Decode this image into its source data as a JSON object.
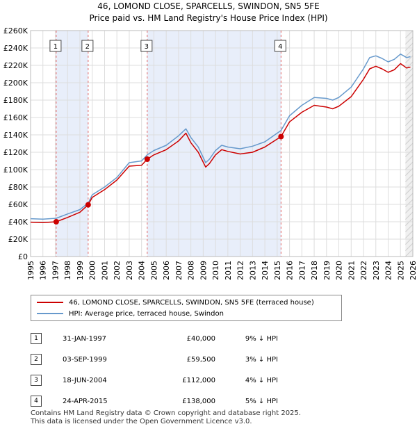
{
  "title_line1": "46, LOMOND CLOSE, SPARCELLS, SWINDON, SN5 5FE",
  "title_line2": "Price paid vs. HM Land Registry's House Price Index (HPI)",
  "colors": {
    "price": "#cc0000",
    "hpi": "#6699cc",
    "shade": "#e8eefa",
    "grid": "#dddddd",
    "vline": "#e06666"
  },
  "chart_data": {
    "type": "line",
    "xlim": [
      1995,
      2026
    ],
    "ylim": [
      0,
      260000
    ],
    "x_ticks": [
      1995,
      1996,
      1997,
      1998,
      1999,
      2000,
      2001,
      2002,
      2003,
      2004,
      2005,
      2006,
      2007,
      2008,
      2009,
      2010,
      2011,
      2012,
      2013,
      2014,
      2015,
      2016,
      2017,
      2018,
      2019,
      2020,
      2021,
      2022,
      2023,
      2024,
      2025,
      2026
    ],
    "x_tick_labels": [
      "1995",
      "1996",
      "1997",
      "1998",
      "1999",
      "2000",
      "2001",
      "2002",
      "2003",
      "2004",
      "2005",
      "2006",
      "2007",
      "2008",
      "2009",
      "2010",
      "2011",
      "2012",
      "2013",
      "2014",
      "2015",
      "2016",
      "2017",
      "2018",
      "2019",
      "2020",
      "2021",
      "2022",
      "2023",
      "2024",
      "2025",
      "2026"
    ],
    "y_ticks": [
      0,
      20000,
      40000,
      60000,
      80000,
      100000,
      120000,
      140000,
      160000,
      180000,
      200000,
      220000,
      240000,
      260000
    ],
    "y_tick_labels": [
      "£0",
      "£20K",
      "£40K",
      "£60K",
      "£80K",
      "£100K",
      "£120K",
      "£140K",
      "£160K",
      "£180K",
      "£200K",
      "£220K",
      "£240K",
      "£260K"
    ],
    "shaded_periods": [
      [
        1997.08,
        1999.67
      ],
      [
        2004.46,
        2015.31
      ]
    ],
    "forecast_from": 2025.4,
    "series": [
      {
        "name": "46, LOMOND CLOSE, SPARCELLS, SWINDON, SN5 5FE (terraced house)",
        "color": "#cc0000",
        "points": [
          [
            1995,
            39500
          ],
          [
            1996,
            39000
          ],
          [
            1997.08,
            40000
          ],
          [
            1998,
            45000
          ],
          [
            1999,
            51000
          ],
          [
            1999.67,
            59500
          ],
          [
            2000,
            68000
          ],
          [
            2001,
            77000
          ],
          [
            2002,
            88000
          ],
          [
            2003,
            104000
          ],
          [
            2004,
            105000
          ],
          [
            2004.46,
            112000
          ],
          [
            2005,
            117000
          ],
          [
            2006,
            123000
          ],
          [
            2007,
            133000
          ],
          [
            2007.6,
            142000
          ],
          [
            2008,
            131000
          ],
          [
            2008.6,
            120000
          ],
          [
            2009.2,
            103000
          ],
          [
            2009.5,
            107000
          ],
          [
            2010,
            117000
          ],
          [
            2010.5,
            123000
          ],
          [
            2011,
            121000
          ],
          [
            2012,
            118000
          ],
          [
            2013,
            120000
          ],
          [
            2014,
            126000
          ],
          [
            2015.31,
            138000
          ],
          [
            2016,
            155000
          ],
          [
            2017,
            166000
          ],
          [
            2018,
            174000
          ],
          [
            2019,
            172000
          ],
          [
            2019.5,
            170000
          ],
          [
            2020,
            173000
          ],
          [
            2021,
            184000
          ],
          [
            2022,
            204000
          ],
          [
            2022.5,
            216000
          ],
          [
            2023,
            219000
          ],
          [
            2023.5,
            216000
          ],
          [
            2024,
            212000
          ],
          [
            2024.5,
            215000
          ],
          [
            2025,
            222000
          ],
          [
            2025.5,
            217000
          ],
          [
            2025.8,
            218000
          ]
        ]
      },
      {
        "name": "HPI: Average price, terraced house, Swindon",
        "color": "#6699cc",
        "points": [
          [
            1995,
            43500
          ],
          [
            1996,
            43000
          ],
          [
            1997.08,
            44000
          ],
          [
            1998,
            49000
          ],
          [
            1999,
            54000
          ],
          [
            1999.67,
            61500
          ],
          [
            2000,
            71000
          ],
          [
            2001,
            80000
          ],
          [
            2002,
            91000
          ],
          [
            2003,
            108000
          ],
          [
            2004,
            110000
          ],
          [
            2004.46,
            117000
          ],
          [
            2005,
            122000
          ],
          [
            2006,
            128000
          ],
          [
            2007,
            139000
          ],
          [
            2007.6,
            147000
          ],
          [
            2008,
            137000
          ],
          [
            2008.6,
            126000
          ],
          [
            2009.2,
            108000
          ],
          [
            2009.5,
            112000
          ],
          [
            2010,
            122000
          ],
          [
            2010.5,
            128000
          ],
          [
            2011,
            126000
          ],
          [
            2012,
            124000
          ],
          [
            2013,
            127000
          ],
          [
            2014,
            132000
          ],
          [
            2015.31,
            145000
          ],
          [
            2016,
            162000
          ],
          [
            2017,
            174000
          ],
          [
            2018,
            183000
          ],
          [
            2019,
            182000
          ],
          [
            2019.5,
            180000
          ],
          [
            2020,
            183000
          ],
          [
            2021,
            195000
          ],
          [
            2022,
            216000
          ],
          [
            2022.5,
            229000
          ],
          [
            2023,
            231000
          ],
          [
            2023.5,
            228000
          ],
          [
            2024,
            224000
          ],
          [
            2024.5,
            227000
          ],
          [
            2025,
            233000
          ],
          [
            2025.5,
            229000
          ],
          [
            2025.8,
            230000
          ]
        ]
      }
    ],
    "sale_markers": [
      {
        "label": "1",
        "x": 1997.08,
        "y": 40000
      },
      {
        "label": "2",
        "x": 1999.67,
        "y": 59500
      },
      {
        "label": "3",
        "x": 2004.46,
        "y": 112000
      },
      {
        "label": "4",
        "x": 2015.31,
        "y": 138000
      }
    ]
  },
  "legend": {
    "price_label": "46, LOMOND CLOSE, SPARCELLS, SWINDON, SN5 5FE (terraced house)",
    "hpi_label": "HPI: Average price, terraced house, Swindon"
  },
  "sales": [
    {
      "num": "1",
      "date": "31-JAN-1997",
      "price": "£40,000",
      "hpi": "9% ↓ HPI"
    },
    {
      "num": "2",
      "date": "03-SEP-1999",
      "price": "£59,500",
      "hpi": "3% ↓ HPI"
    },
    {
      "num": "3",
      "date": "18-JUN-2004",
      "price": "£112,000",
      "hpi": "4% ↓ HPI"
    },
    {
      "num": "4",
      "date": "24-APR-2015",
      "price": "£138,000",
      "hpi": "5% ↓ HPI"
    }
  ],
  "footer_line1": "Contains HM Land Registry data © Crown copyright and database right 2025.",
  "footer_line2": "This data is licensed under the Open Government Licence v3.0."
}
